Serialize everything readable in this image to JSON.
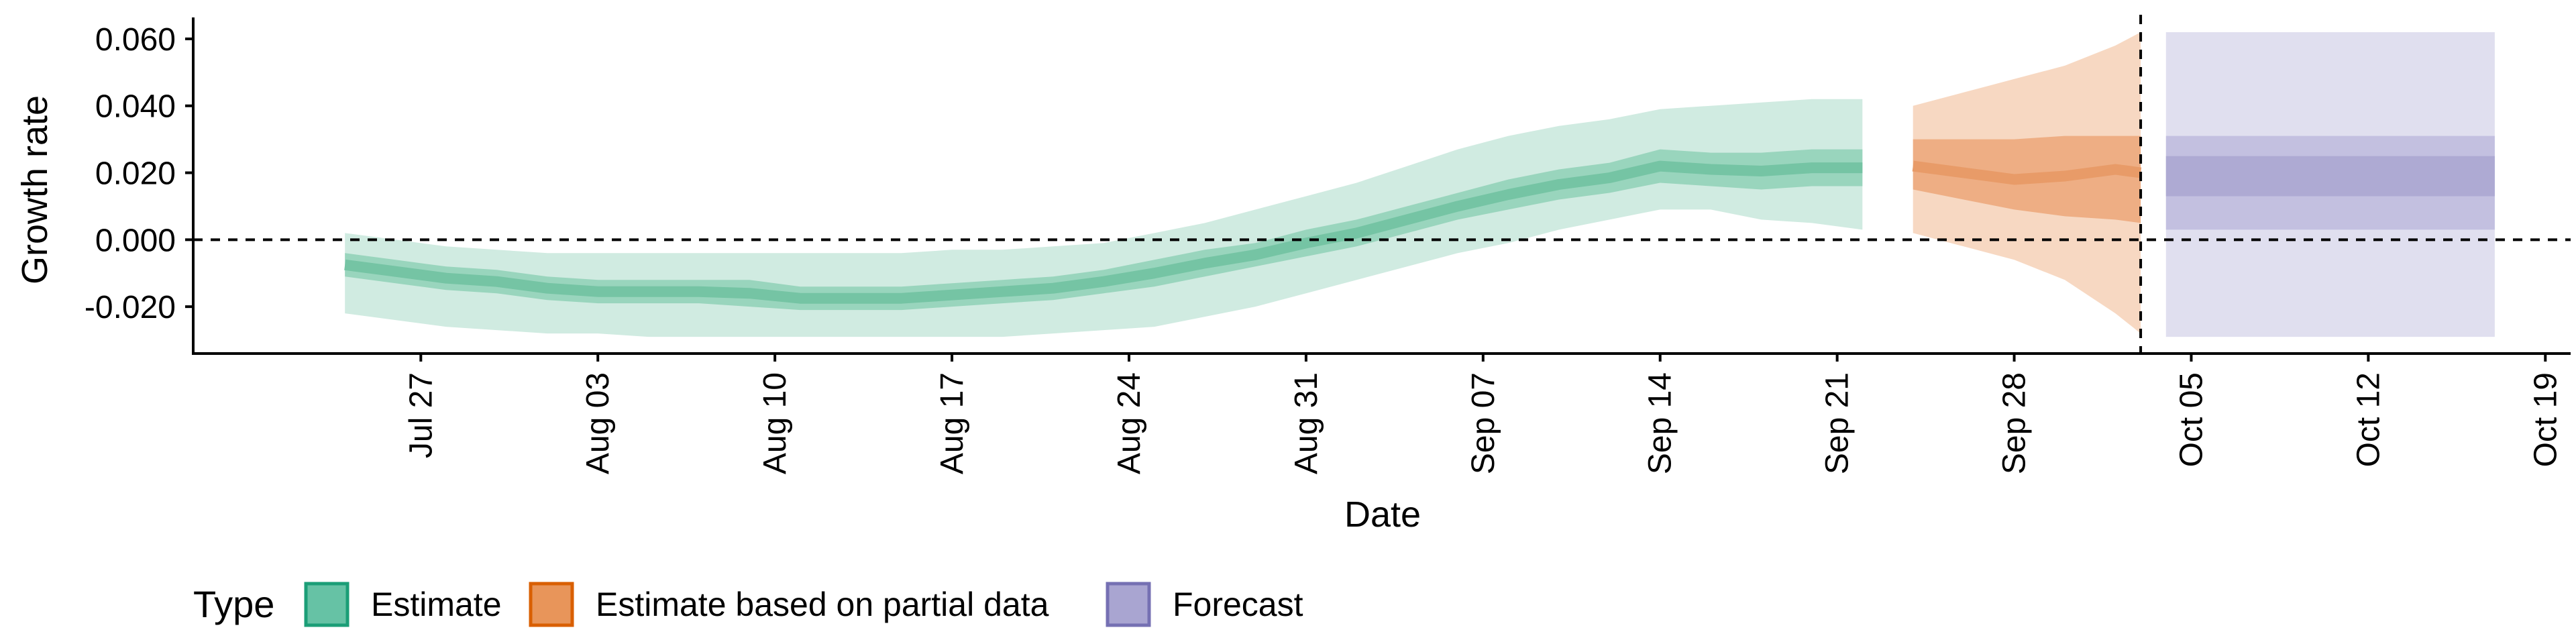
{
  "chart_data": {
    "type": "area",
    "xlabel": "Date",
    "ylabel": "Growth rate",
    "x_range": [
      "2020-07-18",
      "2020-10-20"
    ],
    "ylim": [
      -0.034,
      0.066
    ],
    "x_ticks": [
      {
        "date": "2020-07-27",
        "label": "Jul 27"
      },
      {
        "date": "2020-08-03",
        "label": "Aug 03"
      },
      {
        "date": "2020-08-10",
        "label": "Aug 10"
      },
      {
        "date": "2020-08-17",
        "label": "Aug 17"
      },
      {
        "date": "2020-08-24",
        "label": "Aug 24"
      },
      {
        "date": "2020-08-31",
        "label": "Aug 31"
      },
      {
        "date": "2020-09-07",
        "label": "Sep 07"
      },
      {
        "date": "2020-09-14",
        "label": "Sep 14"
      },
      {
        "date": "2020-09-21",
        "label": "Sep 21"
      },
      {
        "date": "2020-09-28",
        "label": "Sep 28"
      },
      {
        "date": "2020-10-05",
        "label": "Oct 05"
      },
      {
        "date": "2020-10-12",
        "label": "Oct 12"
      },
      {
        "date": "2020-10-19",
        "label": "Oct 19"
      }
    ],
    "y_ticks": [
      {
        "value": -0.02,
        "label": "-0.020"
      },
      {
        "value": 0.0,
        "label": "0.000"
      },
      {
        "value": 0.02,
        "label": "0.020"
      },
      {
        "value": 0.04,
        "label": "0.040"
      },
      {
        "value": 0.06,
        "label": "0.060"
      }
    ],
    "reference_lines": {
      "horizontal_y": 0.0,
      "vertical_date": "2020-10-03",
      "style": "dashed"
    },
    "grid": false,
    "legend": {
      "position": "bottom-left",
      "title": "Type",
      "entries": [
        {
          "label": "Estimate",
          "fill": "#66c2a5",
          "stroke": "#1b9e77"
        },
        {
          "label": "Estimate based on partial data",
          "fill": "#e8955a",
          "stroke": "#d95f02"
        },
        {
          "label": "Forecast",
          "fill": "#a9a5d1",
          "stroke": "#7570b3"
        }
      ]
    },
    "colors": {
      "estimate_outer": "#d0ebe1",
      "estimate_inner": "#99d5bd",
      "estimate_line": "#75c4a4",
      "partial_outer": "#f7d8c2",
      "partial_inner": "#eeae84",
      "partial_line": "#e89b68",
      "forecast_outer": "#e0dfef",
      "forecast_inner": "#c3c0e0",
      "forecast_line": "#aeaad3"
    },
    "series": [
      {
        "type_label": "Estimate",
        "x": [
          "2020-07-24",
          "2020-07-26",
          "2020-07-28",
          "2020-07-30",
          "2020-08-01",
          "2020-08-03",
          "2020-08-05",
          "2020-08-07",
          "2020-08-09",
          "2020-08-11",
          "2020-08-13",
          "2020-08-15",
          "2020-08-17",
          "2020-08-19",
          "2020-08-21",
          "2020-08-23",
          "2020-08-25",
          "2020-08-27",
          "2020-08-29",
          "2020-08-31",
          "2020-09-02",
          "2020-09-04",
          "2020-09-06",
          "2020-09-08",
          "2020-09-10",
          "2020-09-12",
          "2020-09-14",
          "2020-09-16",
          "2020-09-18",
          "2020-09-20",
          "2020-09-22"
        ],
        "lower90": [
          -0.022,
          -0.024,
          -0.026,
          -0.027,
          -0.028,
          -0.028,
          -0.029,
          -0.029,
          -0.029,
          -0.029,
          -0.029,
          -0.029,
          -0.029,
          -0.029,
          -0.028,
          -0.027,
          -0.026,
          -0.023,
          -0.02,
          -0.016,
          -0.012,
          -0.008,
          -0.004,
          -0.001,
          0.003,
          0.006,
          0.009,
          0.009,
          0.006,
          0.005,
          0.003
        ],
        "upper90": [
          0.002,
          0.0,
          -0.002,
          -0.003,
          -0.004,
          -0.004,
          -0.004,
          -0.004,
          -0.004,
          -0.004,
          -0.004,
          -0.004,
          -0.003,
          -0.003,
          -0.002,
          -0.001,
          0.002,
          0.005,
          0.009,
          0.013,
          0.017,
          0.022,
          0.027,
          0.031,
          0.034,
          0.036,
          0.039,
          0.04,
          0.041,
          0.042,
          0.042
        ],
        "lower50": [
          -0.011,
          -0.013,
          -0.015,
          -0.016,
          -0.018,
          -0.019,
          -0.019,
          -0.019,
          -0.02,
          -0.021,
          -0.021,
          -0.021,
          -0.02,
          -0.019,
          -0.018,
          -0.016,
          -0.014,
          -0.011,
          -0.008,
          -0.005,
          -0.002,
          0.002,
          0.006,
          0.009,
          0.012,
          0.014,
          0.017,
          0.016,
          0.015,
          0.016,
          0.016
        ],
        "upper50": [
          -0.004,
          -0.006,
          -0.008,
          -0.009,
          -0.011,
          -0.012,
          -0.012,
          -0.012,
          -0.012,
          -0.014,
          -0.014,
          -0.014,
          -0.013,
          -0.012,
          -0.011,
          -0.009,
          -0.006,
          -0.003,
          -0.001,
          0.003,
          0.006,
          0.01,
          0.014,
          0.018,
          0.021,
          0.023,
          0.027,
          0.026,
          0.026,
          0.027,
          0.027
        ],
        "median": [
          -0.0075,
          -0.0095,
          -0.0115,
          -0.0125,
          -0.0145,
          -0.0155,
          -0.0155,
          -0.0155,
          -0.016,
          -0.0175,
          -0.0175,
          -0.0175,
          -0.0165,
          -0.0155,
          -0.0145,
          -0.0125,
          -0.01,
          -0.007,
          -0.0045,
          -0.001,
          0.002,
          0.006,
          0.01,
          0.0135,
          0.0165,
          0.0185,
          0.022,
          0.021,
          0.0205,
          0.0215,
          0.0215
        ]
      },
      {
        "type_label": "Estimate based on partial data",
        "x": [
          "2020-09-24",
          "2020-09-26",
          "2020-09-28",
          "2020-09-30",
          "2020-10-02",
          "2020-10-03"
        ],
        "lower90": [
          0.002,
          -0.002,
          -0.006,
          -0.012,
          -0.022,
          -0.028
        ],
        "upper90": [
          0.04,
          0.044,
          0.048,
          0.052,
          0.058,
          0.062
        ],
        "lower50": [
          0.015,
          0.012,
          0.009,
          0.007,
          0.006,
          0.005
        ],
        "upper50": [
          0.03,
          0.03,
          0.03,
          0.031,
          0.031,
          0.031
        ],
        "median": [
          0.022,
          0.02,
          0.018,
          0.019,
          0.021,
          0.02
        ]
      },
      {
        "type_label": "Forecast",
        "x": [
          "2020-10-04",
          "2020-10-17"
        ],
        "lower90": [
          -0.029,
          -0.029
        ],
        "upper90": [
          0.062,
          0.062
        ],
        "lower50": [
          0.003,
          0.003
        ],
        "upper50": [
          0.031,
          0.031
        ],
        "median_low": [
          0.013,
          0.013
        ],
        "median_high": [
          0.025,
          0.025
        ]
      }
    ]
  }
}
